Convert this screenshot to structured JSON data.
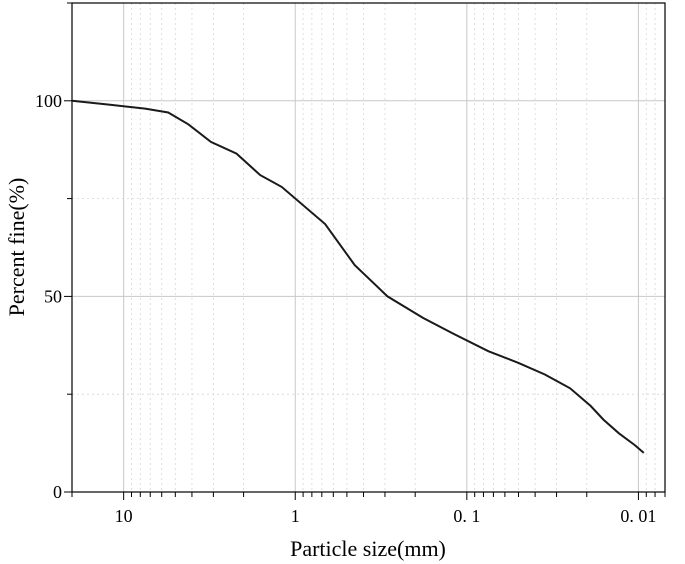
{
  "chart_data": {
    "type": "line",
    "title": "",
    "xlabel": "Particle size(mm)",
    "ylabel": "Percent fine(%)",
    "x_scale": "log",
    "x_reversed": true,
    "xlim": [
      20,
      0.007
    ],
    "ylim": [
      0,
      125
    ],
    "grid": true,
    "x_ticks": [
      {
        "value": 10,
        "label": "10"
      },
      {
        "value": 1,
        "label": "1"
      },
      {
        "value": 0.1,
        "label": "0. 1"
      },
      {
        "value": 0.01,
        "label": "0. 01"
      }
    ],
    "y_ticks": [
      {
        "value": 0,
        "label": "0"
      },
      {
        "value": 50,
        "label": "50"
      },
      {
        "value": 100,
        "label": "100"
      }
    ],
    "series": [
      {
        "x": [
          20,
          12,
          7.5,
          5.5,
          4.2,
          3.1,
          2.2,
          1.6,
          1.2,
          0.67,
          0.45,
          0.29,
          0.18,
          0.12,
          0.075,
          0.05,
          0.035,
          0.025,
          0.019,
          0.016,
          0.013,
          0.0105,
          0.0093
        ],
        "y": [
          100,
          99,
          98,
          97,
          94,
          89.5,
          86.5,
          81,
          78,
          68.5,
          58,
          50,
          44.5,
          40.5,
          36,
          33,
          30,
          26.5,
          22,
          18.5,
          15,
          12,
          10
        ],
        "color": "#1a1a1a"
      }
    ]
  }
}
